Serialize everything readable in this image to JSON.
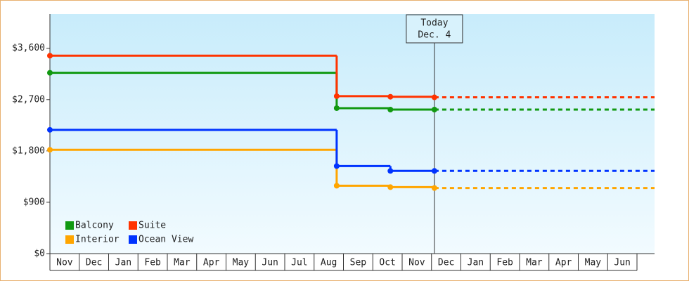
{
  "chart_data": {
    "type": "step-line",
    "categories": [
      "Nov",
      "Dec",
      "Jan",
      "Feb",
      "Mar",
      "Apr",
      "May",
      "Jun",
      "Jul",
      "Aug",
      "Sep",
      "Oct",
      "Nov",
      "Dec",
      "Jan",
      "Feb",
      "Mar",
      "Apr",
      "May",
      "Jun"
    ],
    "x": [
      0,
      9.77,
      11.6,
      13.1
    ],
    "xlim": [
      0,
      20.6
    ],
    "ylim": [
      0,
      4200
    ],
    "yticks": [
      {
        "value": 0,
        "label": "$0"
      },
      {
        "value": 900,
        "label": "$900"
      },
      {
        "value": 1800,
        "label": "$1,800"
      },
      {
        "value": 2700,
        "label": "$2,700"
      },
      {
        "value": 3600,
        "label": "$3,600"
      }
    ],
    "today": {
      "x": 13.1,
      "label": "Today",
      "date": "Dec. 4"
    },
    "projection": "dashed",
    "legend": "lower left",
    "series": [
      {
        "name": "Balcony",
        "color": "#119911",
        "values": [
          3170,
          2550,
          2525,
          2525
        ]
      },
      {
        "name": "Suite",
        "color": "#ff3300",
        "values": [
          3470,
          2760,
          2750,
          2740
        ]
      },
      {
        "name": "Interior",
        "color": "#ffa500",
        "values": [
          1820,
          1190,
          1165,
          1150
        ]
      },
      {
        "name": "Ocean View",
        "color": "#0033ff",
        "values": [
          2170,
          1535,
          1450,
          1450
        ]
      }
    ]
  }
}
